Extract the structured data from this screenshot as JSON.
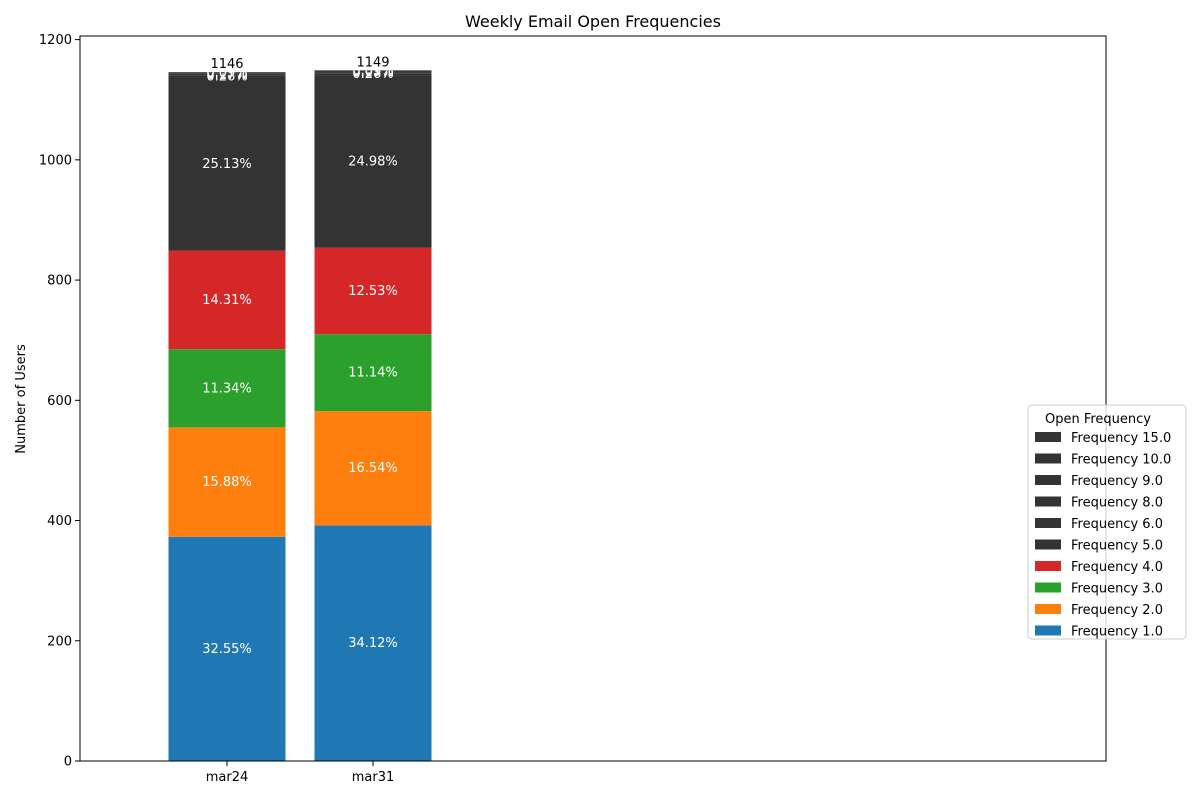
{
  "chart_data": {
    "type": "bar",
    "stacked": true,
    "title": "Weekly Email Open Frequencies",
    "xlabel": "",
    "ylabel": "Number of Users",
    "ylim": [
      0,
      1206
    ],
    "yticks": [
      0,
      200,
      400,
      600,
      800,
      1000,
      1200
    ],
    "categories": [
      "mar24",
      "mar31"
    ],
    "totals": [
      1146,
      1149
    ],
    "legend": {
      "title": "Open Frequency",
      "placement": "center-right"
    },
    "series": [
      {
        "name": "Frequency 1.0",
        "color": "#1f77b4",
        "values": [
          373,
          392
        ],
        "labels": [
          "32.55%",
          "34.12%"
        ]
      },
      {
        "name": "Frequency 2.0",
        "color": "#ff7f0e",
        "values": [
          182,
          190
        ],
        "labels": [
          "15.88%",
          "16.54%"
        ]
      },
      {
        "name": "Frequency 3.0",
        "color": "#2ca02c",
        "values": [
          130,
          128
        ],
        "labels": [
          "11.34%",
          "11.14%"
        ]
      },
      {
        "name": "Frequency 4.0",
        "color": "#d62728",
        "values": [
          164,
          144
        ],
        "labels": [
          "14.31%",
          "12.53%"
        ]
      },
      {
        "name": "Frequency 5.0",
        "color": "#333333",
        "values": [
          288,
          287
        ],
        "labels": [
          "25.13%",
          "24.98%"
        ]
      },
      {
        "name": "Frequency 6.0",
        "color": "#333333",
        "values": [
          3,
          3
        ],
        "labels": [
          "0.26%",
          "0.26%"
        ]
      },
      {
        "name": "Frequency 8.0",
        "color": "#333333",
        "values": [
          2,
          2
        ],
        "labels": [
          "0.17%",
          "0.17%"
        ]
      },
      {
        "name": "Frequency 9.0",
        "color": "#333333",
        "values": [
          2,
          1
        ],
        "labels": [
          "0.17%",
          "0.09%"
        ]
      },
      {
        "name": "Frequency 10.0",
        "color": "#333333",
        "values": [
          1,
          1
        ],
        "labels": [
          "0.09%",
          "0.09%"
        ]
      },
      {
        "name": "Frequency 15.0",
        "color": "#333333",
        "values": [
          1,
          1
        ],
        "labels": [
          "0.09%",
          "0.09%"
        ]
      }
    ]
  }
}
